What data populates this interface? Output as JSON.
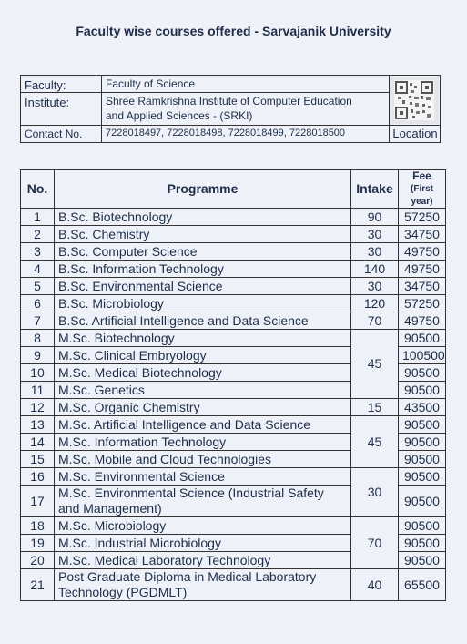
{
  "title": "Faculty wise courses offered - Sarvajanik University",
  "info": {
    "faculty_label": "Faculty:",
    "faculty_value": "Faculty of Science",
    "institute_label": "Institute:",
    "institute_line1": "Shree Ramkrishna Institute of Computer Education",
    "institute_line2": "and Applied Sciences - (SRKI)",
    "contact_label": "Contact No.",
    "contact_value": "7228018497, 7228018498, 7228018499, 7228018500",
    "location_label": "Location",
    "qr_icon": "qr-code-icon"
  },
  "table": {
    "headers": {
      "no": "No.",
      "programme": "Programme",
      "intake": "Intake",
      "fee": "Fee",
      "fee_sub": "(First year)"
    },
    "rows": [
      {
        "no": "1",
        "programme": "B.Sc. Biotechnology",
        "intake": "90",
        "fee": "57250"
      },
      {
        "no": "2",
        "programme": "B.Sc. Chemistry",
        "intake": "30",
        "fee": "34750"
      },
      {
        "no": "3",
        "programme": "B.Sc. Computer Science",
        "intake": "30",
        "fee": "49750"
      },
      {
        "no": "4",
        "programme": "B.Sc. Information Technology",
        "intake": "140",
        "fee": "49750"
      },
      {
        "no": "5",
        "programme": "B.Sc. Environmental Science",
        "intake": "30",
        "fee": "34750"
      },
      {
        "no": "6",
        "programme": "B.Sc. Microbiology",
        "intake": "120",
        "fee": "57250"
      },
      {
        "no": "7",
        "programme": "B.Sc. Artificial Intelligence and Data Science",
        "intake": "70",
        "fee": "49750"
      },
      {
        "no": "8",
        "programme": "M.Sc. Biotechnology",
        "intake": "45",
        "fee": "90500"
      },
      {
        "no": "9",
        "programme": "M.Sc. Clinical Embryology",
        "intake": "",
        "fee": "100500"
      },
      {
        "no": "10",
        "programme": "M.Sc. Medical Biotechnology",
        "intake": "",
        "fee": "90500"
      },
      {
        "no": "11",
        "programme": "M.Sc. Genetics",
        "intake": "",
        "fee": "90500"
      },
      {
        "no": "12",
        "programme": "M.Sc. Organic Chemistry",
        "intake": "15",
        "fee": "43500"
      },
      {
        "no": "13",
        "programme": "M.Sc. Artificial Intelligence and Data Science",
        "intake": "45",
        "fee": "90500"
      },
      {
        "no": "14",
        "programme": "M.Sc. Information Technology",
        "intake": "",
        "fee": "90500"
      },
      {
        "no": "15",
        "programme": "M.Sc. Mobile and Cloud Technologies",
        "intake": "",
        "fee": "90500"
      },
      {
        "no": "16",
        "programme": "M.Sc. Environmental Science",
        "intake": "30",
        "fee": "90500"
      },
      {
        "no": "17",
        "programme": "M.Sc. Environmental Science (Industrial Safety and Management)",
        "intake": "",
        "fee": "90500"
      },
      {
        "no": "18",
        "programme": "M.Sc. Microbiology",
        "intake": "70",
        "fee": "90500"
      },
      {
        "no": "19",
        "programme": "M.Sc. Industrial Microbiology",
        "intake": "",
        "fee": "90500"
      },
      {
        "no": "20",
        "programme": "M.Sc. Medical Laboratory Technology",
        "intake": "",
        "fee": "90500"
      },
      {
        "no": "21",
        "programme": "Post Graduate Diploma in Medical Laboratory Technology (PGDMLT)",
        "intake": "40",
        "fee": "65500"
      }
    ]
  }
}
